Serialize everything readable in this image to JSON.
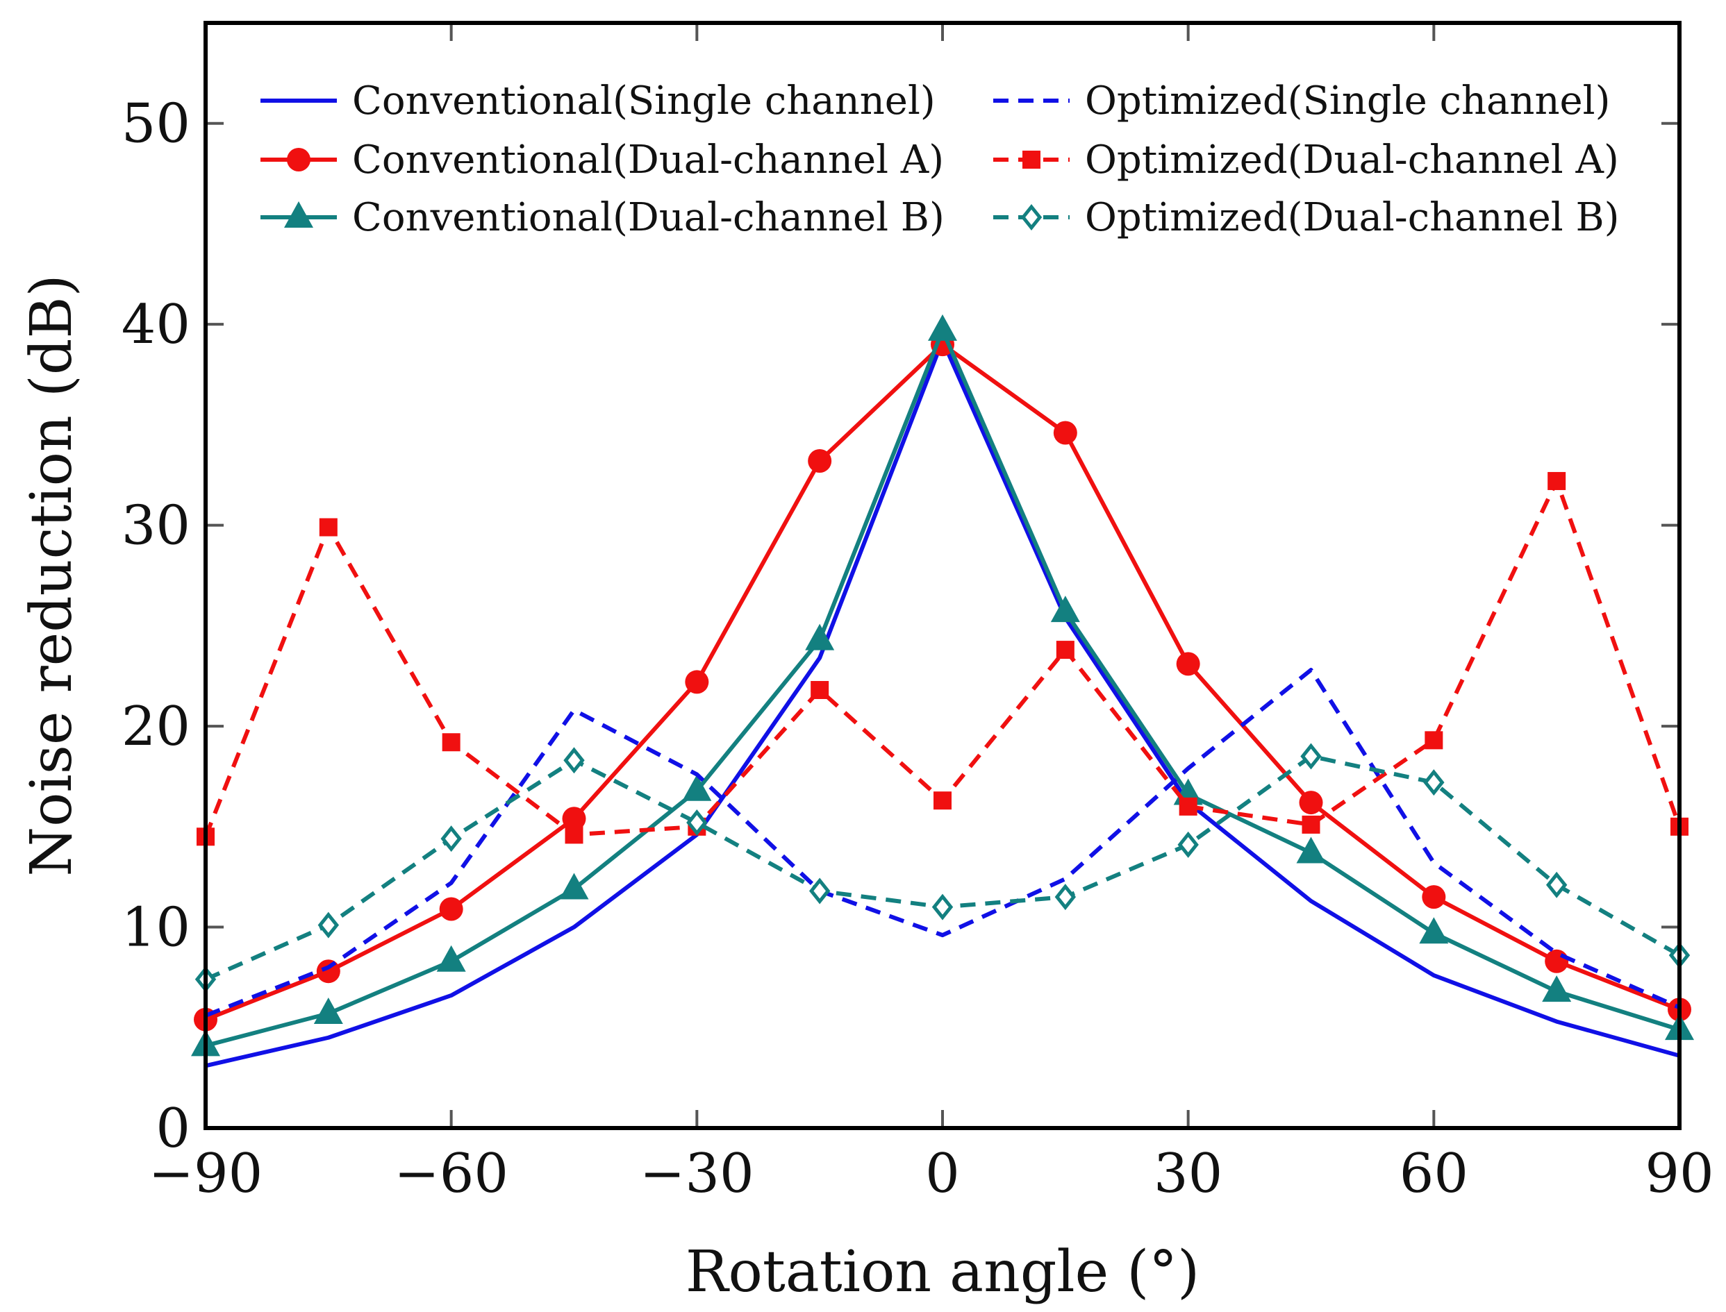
{
  "chart_data": {
    "type": "line",
    "title": "",
    "xlabel": "Rotation angle (°)",
    "ylabel": "Noise reduction (dB)",
    "xlim": [
      -90,
      90
    ],
    "ylim": [
      0,
      55
    ],
    "xticks": [
      -90,
      -60,
      -30,
      0,
      30,
      60,
      90
    ],
    "yticks": [
      0,
      10,
      20,
      30,
      40,
      50
    ],
    "xtick_labels": [
      "−90",
      "−60",
      "−30",
      "0",
      "30",
      "60",
      "90"
    ],
    "ytick_labels": [
      "0",
      "10",
      "20",
      "30",
      "40",
      "50"
    ],
    "grid": false,
    "legend_position": "top",
    "x": [
      -90,
      -75,
      -60,
      -45,
      -30,
      -15,
      0,
      15,
      30,
      45,
      60,
      75,
      90
    ],
    "series": [
      {
        "name": "Conventional(Single channel)",
        "color": "#1010e6",
        "dash": "solid",
        "marker": "none",
        "values": [
          3.1,
          4.5,
          6.6,
          10.0,
          14.6,
          23.4,
          39.2,
          25.4,
          16.2,
          11.3,
          7.6,
          5.3,
          3.6
        ]
      },
      {
        "name": "Conventional(Dual-channel A)",
        "color": "#f01010",
        "dash": "solid",
        "marker": "circle",
        "values": [
          5.4,
          7.8,
          10.9,
          15.4,
          22.2,
          33.2,
          39.0,
          34.6,
          23.1,
          16.2,
          11.5,
          8.3,
          5.9
        ]
      },
      {
        "name": "Conventional(Dual-channel B)",
        "color": "#138080",
        "dash": "solid",
        "marker": "triangle",
        "values": [
          4.1,
          5.7,
          8.3,
          11.9,
          16.8,
          24.3,
          39.7,
          25.7,
          16.6,
          13.7,
          9.7,
          6.8,
          4.9
        ]
      },
      {
        "name": "Optimized(Single channel)",
        "color": "#1010e6",
        "dash": "dashed",
        "marker": "none",
        "values": [
          5.6,
          8.0,
          12.2,
          20.8,
          17.6,
          11.8,
          9.6,
          12.4,
          17.9,
          22.8,
          13.2,
          8.7,
          6.0
        ]
      },
      {
        "name": "Optimized(Dual-channel A)",
        "color": "#f01010",
        "dash": "dashed",
        "marker": "square",
        "values": [
          14.5,
          29.9,
          19.2,
          14.6,
          15.0,
          21.8,
          16.3,
          23.8,
          16.0,
          15.1,
          19.3,
          32.2,
          15.0
        ]
      },
      {
        "name": "Optimized(Dual-channel B)",
        "color": "#138080",
        "dash": "dashed",
        "marker": "diamond-open",
        "values": [
          7.4,
          10.1,
          14.4,
          18.3,
          15.2,
          11.8,
          11.0,
          11.5,
          14.1,
          18.5,
          17.2,
          12.1,
          8.6
        ]
      }
    ]
  }
}
